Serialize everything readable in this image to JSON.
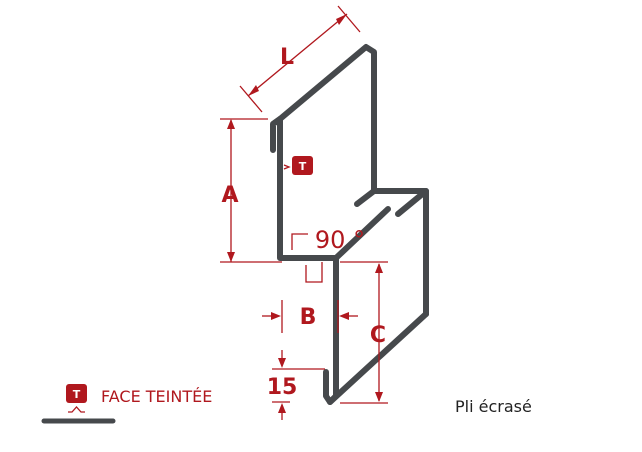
{
  "colors": {
    "profile": "#46494c",
    "dimension": "#b0181e",
    "caption": "#222222",
    "badge_text": "#ffffff"
  },
  "dimensions": {
    "L": "L",
    "A": "A",
    "B": "B",
    "C": "C",
    "hem": "15",
    "angle": "90 °"
  },
  "badge": {
    "letter": "T"
  },
  "legend": {
    "label": "FACE TEINTÉE"
  },
  "caption": "Pli écrasé"
}
